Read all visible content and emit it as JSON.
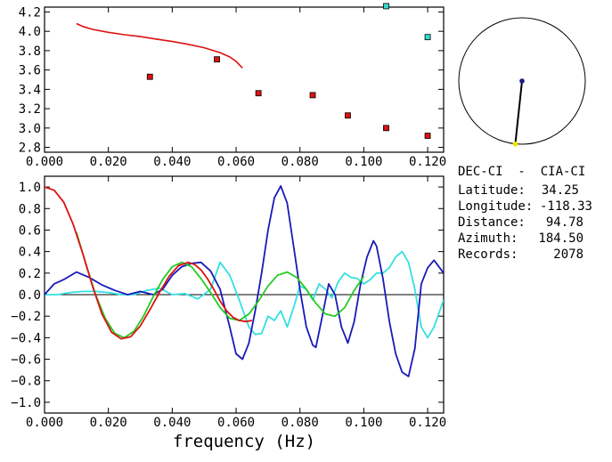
{
  "info": {
    "station_pair": "DEC-CI  -  CIA-CI",
    "rows": [
      {
        "label": "Latitude:",
        "value": "34.25"
      },
      {
        "label": "Longitude:",
        "value": "-118.33"
      },
      {
        "label": "Distance:",
        "value": "94.78"
      },
      {
        "label": "Azimuth:",
        "value": "184.50"
      },
      {
        "label": "Records:",
        "value": "2078"
      }
    ]
  },
  "compass": {
    "azimuth_deg": 184.5,
    "colors": {
      "line": "#000000",
      "center": "#1a1a8c",
      "tip": "#f2e600"
    }
  },
  "chart_data": [
    {
      "type": "scatter",
      "xlim": [
        0.0,
        0.125
      ],
      "ylim": [
        2.75,
        4.25
      ],
      "xticks": [
        "0.000",
        "0.020",
        "0.040",
        "0.060",
        "0.080",
        "0.100",
        "0.120"
      ],
      "xtick_values": [
        0.0,
        0.02,
        0.04,
        0.06,
        0.08,
        0.1,
        0.12
      ],
      "yticks": [
        "2.8",
        "3.0",
        "3.2",
        "3.4",
        "3.6",
        "3.8",
        "4.0",
        "4.2"
      ],
      "ytick_values": [
        2.8,
        3.0,
        3.2,
        3.4,
        3.6,
        3.8,
        4.0,
        4.2
      ],
      "curve": {
        "color": "#dd1111",
        "x": [
          0.01,
          0.012,
          0.015,
          0.02,
          0.025,
          0.03,
          0.035,
          0.04,
          0.045,
          0.05,
          0.055,
          0.058,
          0.06,
          0.062
        ],
        "y": [
          4.08,
          4.05,
          4.02,
          3.99,
          3.965,
          3.945,
          3.92,
          3.895,
          3.865,
          3.83,
          3.78,
          3.735,
          3.69,
          3.62
        ]
      },
      "points_red": {
        "color": "#dd1111",
        "x": [
          0.033,
          0.054,
          0.067,
          0.084,
          0.095,
          0.107,
          0.12
        ],
        "y": [
          3.53,
          3.71,
          3.36,
          3.34,
          3.13,
          3.0,
          2.92
        ]
      },
      "points_cyan": {
        "color": "#33ddcc",
        "x": [
          0.107,
          0.12
        ],
        "y": [
          4.26,
          3.94
        ]
      }
    },
    {
      "type": "line",
      "xlim": [
        0.0,
        0.125
      ],
      "ylim": [
        -1.1,
        1.1
      ],
      "xlabel": "frequency  (Hz)",
      "xticks": [
        "0.000",
        "0.020",
        "0.040",
        "0.060",
        "0.080",
        "0.100",
        "0.120"
      ],
      "xtick_values": [
        0.0,
        0.02,
        0.04,
        0.06,
        0.08,
        0.1,
        0.12
      ],
      "yticks": [
        "1.0",
        "0.8",
        "0.6",
        "0.4",
        "0.2",
        "0.0",
        "−0.2",
        "−0.4",
        "−0.6",
        "−0.8",
        "−1.0"
      ],
      "ytick_values": [
        1.0,
        0.8,
        0.6,
        0.4,
        0.2,
        0.0,
        -0.2,
        -0.4,
        -0.6,
        -0.8,
        -1.0
      ],
      "series": [
        {
          "color": "#1a1ab8",
          "x": [
            0.0,
            0.003,
            0.006,
            0.01,
            0.014,
            0.018,
            0.022,
            0.026,
            0.03,
            0.034,
            0.037,
            0.04,
            0.043,
            0.046,
            0.049,
            0.052,
            0.055,
            0.058,
            0.06,
            0.062,
            0.064,
            0.066,
            0.068,
            0.07,
            0.072,
            0.074,
            0.076,
            0.078,
            0.08,
            0.082,
            0.084,
            0.085,
            0.087,
            0.089,
            0.091,
            0.093,
            0.095,
            0.097,
            0.099,
            0.101,
            0.103,
            0.104,
            0.106,
            0.108,
            0.11,
            0.112,
            0.114,
            0.116,
            0.118,
            0.12,
            0.122,
            0.123,
            0.125
          ],
          "y": [
            0.0,
            0.1,
            0.14,
            0.21,
            0.16,
            0.09,
            0.04,
            0.0,
            0.03,
            0.0,
            0.05,
            0.18,
            0.26,
            0.29,
            0.3,
            0.22,
            0.05,
            -0.3,
            -0.55,
            -0.6,
            -0.45,
            -0.15,
            0.2,
            0.6,
            0.9,
            1.01,
            0.85,
            0.45,
            0.05,
            -0.3,
            -0.47,
            -0.49,
            -0.2,
            0.1,
            0.0,
            -0.3,
            -0.45,
            -0.25,
            0.1,
            0.35,
            0.5,
            0.45,
            0.15,
            -0.25,
            -0.55,
            -0.72,
            -0.76,
            -0.5,
            0.1,
            0.25,
            0.32,
            0.28,
            0.2
          ]
        },
        {
          "color": "#dd1111",
          "x": [
            0.0,
            0.003,
            0.006,
            0.009,
            0.012,
            0.015,
            0.018,
            0.021,
            0.024,
            0.027,
            0.03,
            0.033,
            0.036,
            0.039,
            0.042,
            0.045,
            0.047,
            0.049,
            0.051,
            0.053,
            0.055,
            0.057,
            0.059,
            0.061,
            0.063,
            0.065
          ],
          "y": [
            1.0,
            0.97,
            0.86,
            0.65,
            0.38,
            0.08,
            -0.18,
            -0.35,
            -0.41,
            -0.39,
            -0.29,
            -0.14,
            0.02,
            0.17,
            0.27,
            0.3,
            0.28,
            0.23,
            0.15,
            0.05,
            -0.06,
            -0.15,
            -0.21,
            -0.24,
            -0.25,
            -0.24
          ]
        },
        {
          "color": "#22cc22",
          "x": [
            0.01,
            0.013,
            0.016,
            0.019,
            0.022,
            0.025,
            0.028,
            0.031,
            0.034,
            0.037,
            0.04,
            0.043,
            0.046,
            0.049,
            0.052,
            0.055,
            0.058,
            0.061,
            0.064,
            0.067,
            0.07,
            0.073,
            0.076,
            0.079,
            0.082,
            0.085,
            0.088,
            0.091,
            0.094,
            0.097,
            0.1
          ],
          "y": [
            0.58,
            0.28,
            0.0,
            -0.22,
            -0.36,
            -0.4,
            -0.34,
            -0.2,
            -0.02,
            0.14,
            0.26,
            0.3,
            0.26,
            0.15,
            0.02,
            -0.12,
            -0.22,
            -0.24,
            -0.18,
            -0.06,
            0.08,
            0.18,
            0.21,
            0.16,
            0.05,
            -0.08,
            -0.18,
            -0.2,
            -0.12,
            0.04,
            0.17
          ]
        },
        {
          "color": "#33e0e0",
          "x": [
            0.0,
            0.004,
            0.008,
            0.012,
            0.016,
            0.02,
            0.024,
            0.028,
            0.032,
            0.036,
            0.04,
            0.044,
            0.048,
            0.052,
            0.055,
            0.058,
            0.061,
            0.064,
            0.066,
            0.068,
            0.07,
            0.072,
            0.074,
            0.076,
            0.078,
            0.08,
            0.082,
            0.084,
            0.086,
            0.088,
            0.09,
            0.092,
            0.094,
            0.096,
            0.098,
            0.1,
            0.102,
            0.104,
            0.106,
            0.108,
            0.11,
            0.112,
            0.114,
            0.116,
            0.118,
            0.12,
            0.122,
            0.125
          ],
          "y": [
            0.0,
            0.0,
            0.02,
            0.03,
            0.03,
            0.02,
            0.0,
            0.0,
            0.04,
            0.06,
            0.0,
            0.01,
            -0.04,
            0.05,
            0.3,
            0.18,
            -0.05,
            -0.3,
            -0.37,
            -0.36,
            -0.2,
            -0.24,
            -0.15,
            -0.3,
            -0.12,
            0.08,
            0.05,
            -0.05,
            0.1,
            0.05,
            -0.03,
            0.12,
            0.2,
            0.16,
            0.15,
            0.1,
            0.14,
            0.2,
            0.2,
            0.25,
            0.35,
            0.4,
            0.3,
            0.05,
            -0.3,
            -0.4,
            -0.3,
            -0.05
          ]
        }
      ]
    }
  ]
}
